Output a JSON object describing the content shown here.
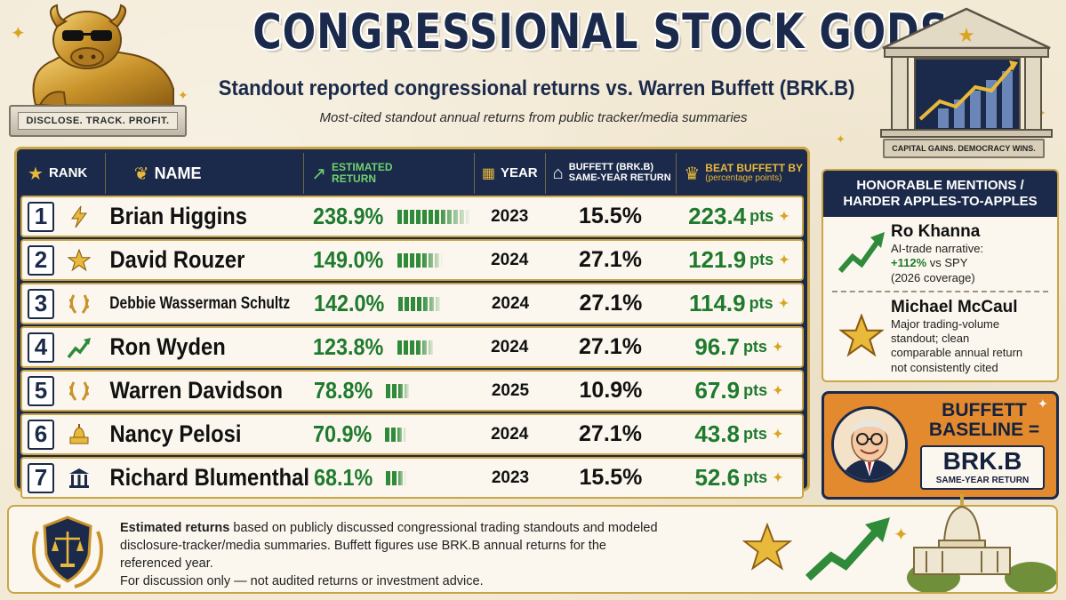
{
  "header": {
    "title": "CONGRESSIONAL STOCK GODS",
    "subtitle": "Standout reported congressional returns vs. Warren Buffett (BRK.B)",
    "tagline": "Most-cited standout annual returns from public tracker/media summaries"
  },
  "bull": {
    "plaque": "DISCLOSE. TRACK. PROFIT."
  },
  "bank": {
    "label": "CAPITAL GAINS. DEMOCRACY WINS."
  },
  "table": {
    "headers": {
      "rank": "RANK",
      "name": "NAME",
      "return_line1": "ESTIMATED",
      "return_line2": "RETURN",
      "year": "YEAR",
      "buffett_line1": "BUFFETT (BRK.B)",
      "buffett_line2": "SAME-YEAR RETURN",
      "beat_line1": "BEAT BUFFETT BY",
      "beat_line2": "(percentage points)"
    },
    "pts_unit": "pts",
    "rows": [
      {
        "rank": "1",
        "icon": "lightning-icon",
        "name": "Brian Higgins",
        "return": "238.9%",
        "return_value": 238.9,
        "year": "2023",
        "buffett": "15.5%",
        "beat": "223.4"
      },
      {
        "rank": "2",
        "icon": "star-icon",
        "name": "David Rouzer",
        "return": "149.0%",
        "return_value": 149.0,
        "year": "2024",
        "buffett": "27.1%",
        "beat": "121.9"
      },
      {
        "rank": "3",
        "icon": "laurel-icon",
        "name": "Debbie Wasserman Schultz",
        "return": "142.0%",
        "return_value": 142.0,
        "year": "2024",
        "buffett": "27.1%",
        "beat": "114.9"
      },
      {
        "rank": "4",
        "icon": "trend-up-icon",
        "name": "Ron Wyden",
        "return": "123.8%",
        "return_value": 123.8,
        "year": "2024",
        "buffett": "27.1%",
        "beat": "96.7"
      },
      {
        "rank": "5",
        "icon": "laurel-icon",
        "name": "Warren Davidson",
        "return": "78.8%",
        "return_value": 78.8,
        "year": "2025",
        "buffett": "10.9%",
        "beat": "67.9"
      },
      {
        "rank": "6",
        "icon": "capitol-icon",
        "name": "Nancy Pelosi",
        "return": "70.9%",
        "return_value": 70.9,
        "year": "2024",
        "buffett": "27.1%",
        "beat": "43.8"
      },
      {
        "rank": "7",
        "icon": "bank-icon",
        "name": "Richard Blumenthal",
        "return": "68.1%",
        "return_value": 68.1,
        "year": "2023",
        "buffett": "15.5%",
        "beat": "52.6"
      }
    ]
  },
  "honorable": {
    "title_line1": "HONORABLE MENTIONS /",
    "title_line2": "HARDER APPLES-TO-APPLES",
    "items": [
      {
        "name": "Ro Khanna",
        "line1": "AI-trade narrative:",
        "highlight": "+112%",
        "line2": " vs SPY",
        "line3": "(2026 coverage)"
      },
      {
        "name": "Michael McCaul",
        "line1": "Major trading-volume",
        "line2": "standout; clean",
        "line3": "comparable annual return",
        "line4": "not consistently cited"
      }
    ]
  },
  "baseline": {
    "title_line1": "BUFFETT",
    "title_line2": "BASELINE =",
    "ticker": "BRK.B",
    "sub": "SAME-YEAR RETURN"
  },
  "footer": {
    "bold": "Estimated returns",
    "text1": " based on publicly discussed congressional trading standouts and modeled",
    "text2": "disclosure-tracker/media summaries. Buffett figures use BRK.B annual returns for the referenced year.",
    "text3": "For discussion only — not audited returns or investment advice."
  },
  "colors": {
    "navy": "#1b2a4a",
    "gold": "#c9a547",
    "green": "#1f7a2e",
    "orange": "#e38a2e",
    "cream": "#fbf7ee"
  }
}
